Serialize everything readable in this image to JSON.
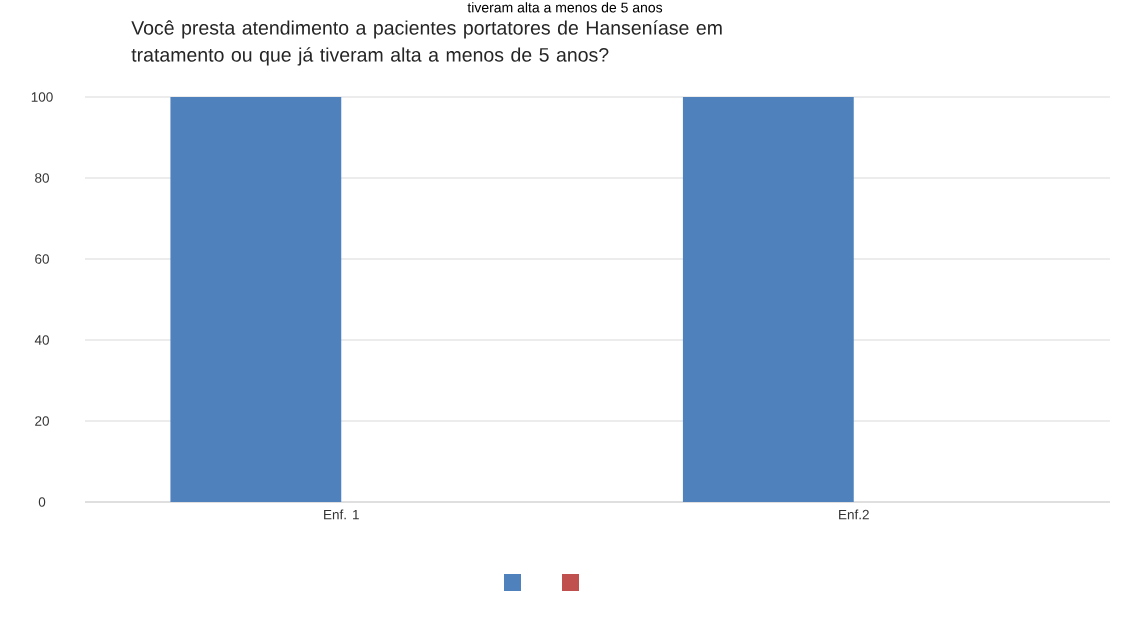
{
  "chart_data": {
    "type": "bar",
    "title": "Você presta atendimento a pacientes portatores de Hanseníase em\ntratamento ou que já tiveram alta a menos de 5 anos?",
    "annotations": [
      "tiveram alta a menos de 5 anos"
    ],
    "categories": [
      "Enf. 1",
      "Enf.2"
    ],
    "series": [
      {
        "color": "#4f81bd",
        "values": [
          100,
          100
        ]
      },
      {
        "color": "#c0504d",
        "values": [
          0,
          0
        ]
      }
    ],
    "ylim": [
      0,
      100
    ],
    "yticks": [
      0,
      20,
      40,
      60,
      80,
      100
    ],
    "grid": "y"
  }
}
